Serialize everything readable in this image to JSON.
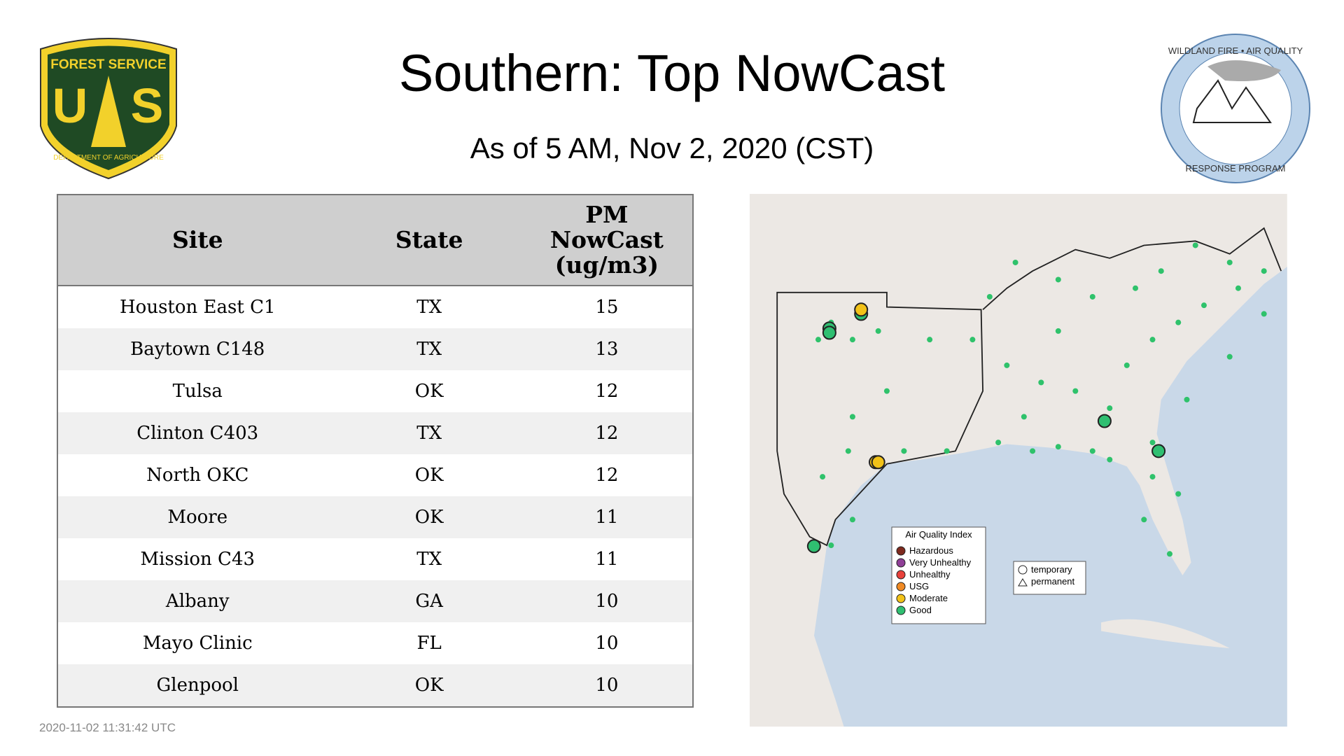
{
  "header": {
    "title": "Southern: Top NowCast",
    "subtitle": "As of  5 AM, Nov  2, 2020 (CST)"
  },
  "logos": {
    "left": {
      "top": "FOREST SERVICE",
      "letter1": "U",
      "letter2": "S",
      "bottom": "DEPARTMENT OF AGRICULTURE"
    },
    "right": {
      "top": "WILDLAND FIRE • AIR QUALITY",
      "bottom": "RESPONSE PROGRAM"
    }
  },
  "table": {
    "columns": [
      "Site",
      "State",
      "PM NowCast (ug/m3)"
    ],
    "rows": [
      [
        "Houston East C1",
        "TX",
        "15"
      ],
      [
        "Baytown C148",
        "TX",
        "13"
      ],
      [
        "Tulsa",
        "OK",
        "12"
      ],
      [
        "Clinton C403",
        "TX",
        "12"
      ],
      [
        "North OKC",
        "OK",
        "12"
      ],
      [
        "Moore",
        "OK",
        "11"
      ],
      [
        "Mission C43",
        "TX",
        "11"
      ],
      [
        "Albany",
        "GA",
        "10"
      ],
      [
        "Mayo Clinic",
        "FL",
        "10"
      ],
      [
        "Glenpool",
        "OK",
        "10"
      ]
    ]
  },
  "map": {
    "legend": {
      "title": "Air Quality Index",
      "items": [
        "Hazardous",
        "Very Unhealthy",
        "Unhealthy",
        "USG",
        "Moderate",
        "Good"
      ],
      "colors": [
        "#7e2a1e",
        "#8f3f97",
        "#e8413b",
        "#f08a24",
        "#f2c218",
        "#2fbf71"
      ]
    },
    "shapes": [
      "temporary",
      "permanent"
    ]
  },
  "timestamp": "2020-11-02 11:31:42 UTC"
}
